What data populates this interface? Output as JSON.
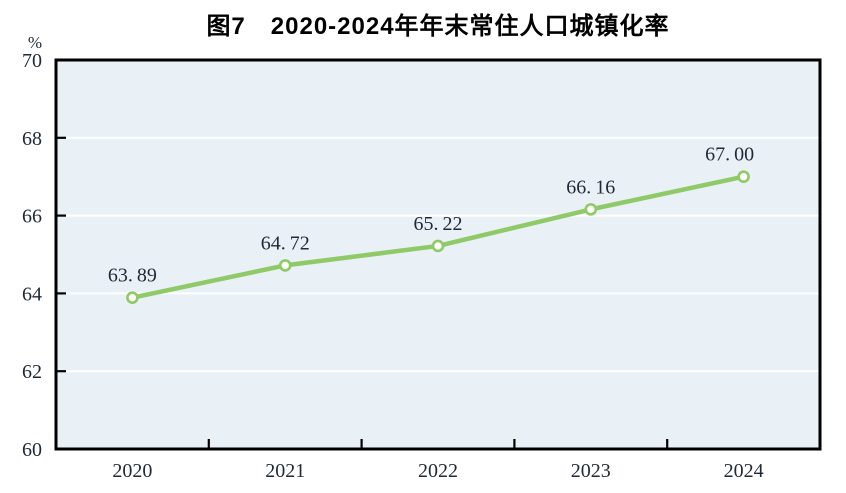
{
  "chart_data": {
    "type": "line",
    "title": "图7　2020-2024年年末常住人口城镇化率",
    "categories": [
      "2020",
      "2021",
      "2022",
      "2023",
      "2024"
    ],
    "values": [
      63.89,
      64.72,
      65.22,
      66.16,
      67.0
    ],
    "data_labels": [
      "63.89",
      "64.72",
      "65.22",
      "66.16",
      "67.00"
    ],
    "unit": "%",
    "xlabel": "",
    "ylabel": "%",
    "ylim": [
      60,
      70
    ],
    "yticks": [
      60,
      62,
      64,
      66,
      68,
      70
    ],
    "grid": true,
    "legend": false,
    "colors": {
      "line": "#8fc968",
      "marker_fill": "#fdfef9",
      "plot_background": "#e9f1f7",
      "gridline": "#ffffff",
      "axis": "#000000",
      "title_text": "#000000",
      "label_text": "#1f2a36"
    }
  }
}
